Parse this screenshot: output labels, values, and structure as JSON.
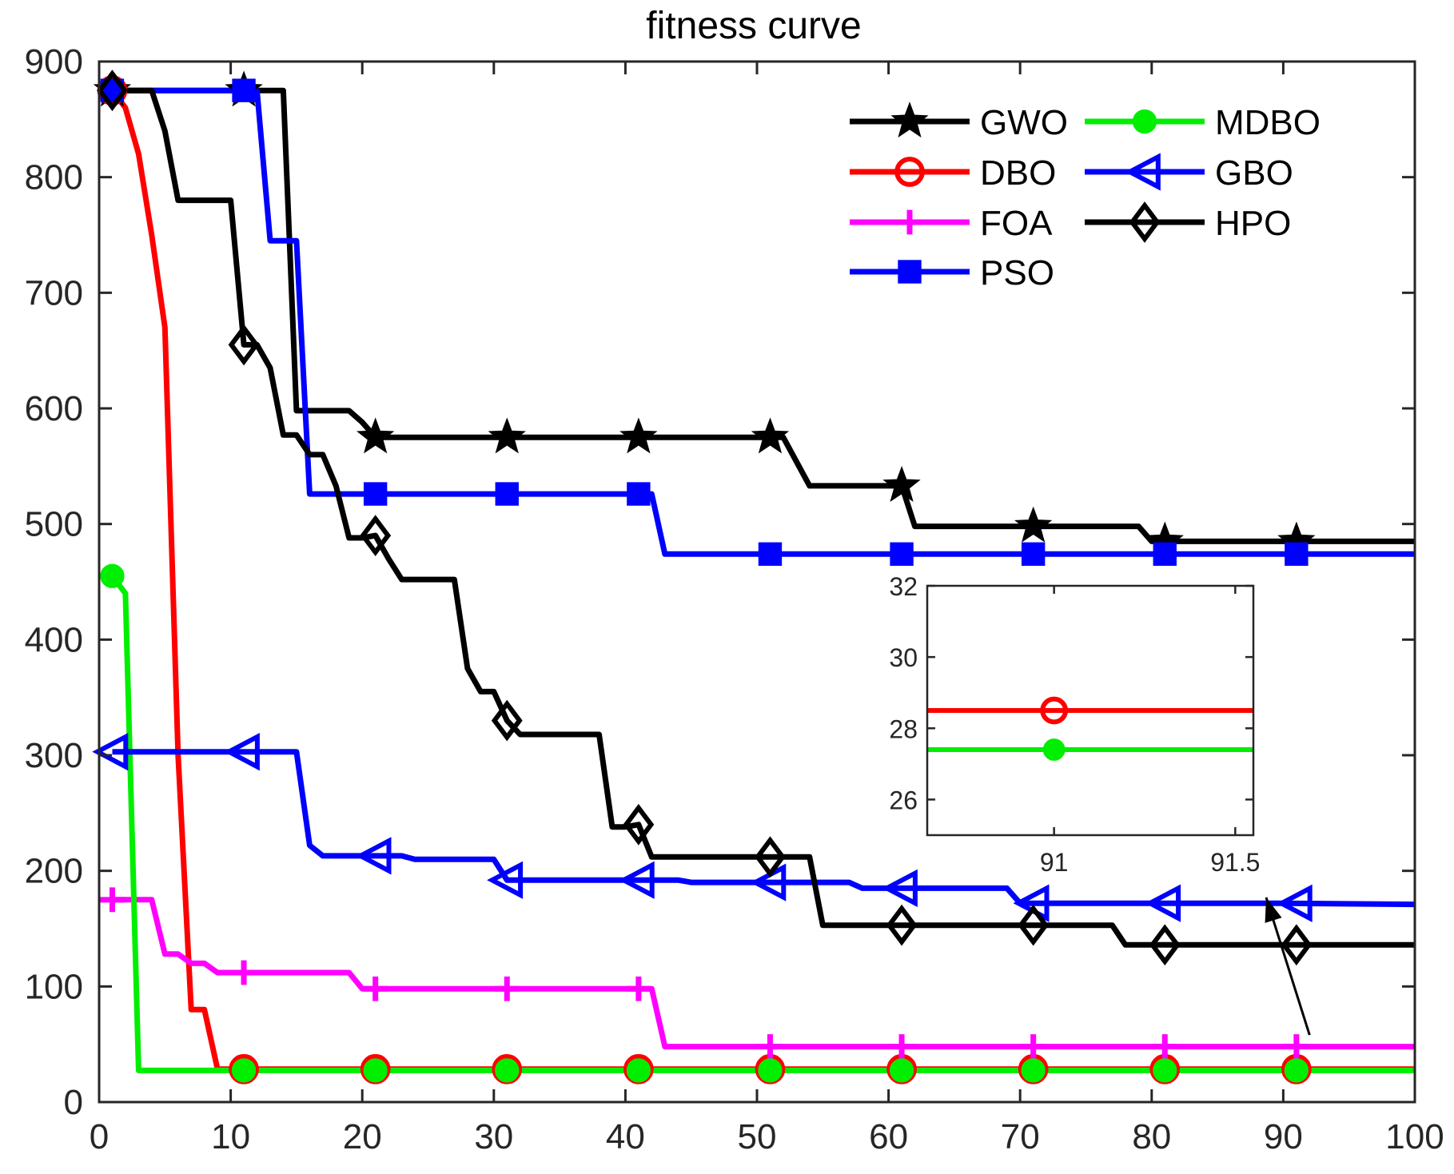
{
  "chart_data": {
    "type": "line",
    "title": "fitness curve",
    "xlabel": "",
    "ylabel": "",
    "xlim": [
      0,
      100
    ],
    "ylim": [
      0,
      900
    ],
    "xticks": [
      0,
      10,
      20,
      30,
      40,
      50,
      60,
      70,
      80,
      90,
      100
    ],
    "yticks": [
      0,
      100,
      200,
      300,
      400,
      500,
      600,
      700,
      800,
      900
    ],
    "grid": false,
    "legend_position": "top-right",
    "series": [
      {
        "name": "GWO",
        "color": "#000000",
        "marker": "star",
        "points": [
          [
            1,
            875
          ],
          [
            14,
            875
          ],
          [
            15,
            598
          ],
          [
            19,
            598
          ],
          [
            20,
            588
          ],
          [
            21,
            575
          ],
          [
            52,
            575
          ],
          [
            54,
            533
          ],
          [
            61,
            533
          ],
          [
            62,
            498
          ],
          [
            79,
            498
          ],
          [
            80,
            485
          ],
          [
            100,
            485
          ]
        ],
        "marker_x": [
          1,
          11,
          21,
          31,
          41,
          51,
          61,
          71,
          81,
          91
        ]
      },
      {
        "name": "DBO",
        "color": "#ff0000",
        "marker": "circle",
        "points": [
          [
            1,
            875
          ],
          [
            2,
            860
          ],
          [
            3,
            820
          ],
          [
            4,
            750
          ],
          [
            5,
            670
          ],
          [
            6,
            300
          ],
          [
            7,
            80
          ],
          [
            8,
            80
          ],
          [
            9,
            28.5
          ],
          [
            100,
            28.5
          ]
        ],
        "marker_x": [
          1,
          11,
          21,
          31,
          41,
          51,
          61,
          71,
          81,
          91
        ]
      },
      {
        "name": "FOA",
        "color": "#ff00ff",
        "marker": "plus",
        "points": [
          [
            1,
            175
          ],
          [
            4,
            175
          ],
          [
            5,
            128
          ],
          [
            6,
            128
          ],
          [
            7,
            120
          ],
          [
            8,
            120
          ],
          [
            9,
            112
          ],
          [
            19,
            112
          ],
          [
            20,
            98
          ],
          [
            42,
            98
          ],
          [
            43,
            48
          ],
          [
            100,
            48
          ]
        ],
        "marker_x": [
          1,
          11,
          21,
          31,
          41,
          51,
          61,
          71,
          81,
          91
        ]
      },
      {
        "name": "PSO",
        "color": "#0000ff",
        "marker": "square",
        "points": [
          [
            1,
            875
          ],
          [
            12,
            875
          ],
          [
            13,
            745
          ],
          [
            15,
            745
          ],
          [
            16,
            526
          ],
          [
            42,
            526
          ],
          [
            43,
            474
          ],
          [
            100,
            474
          ]
        ],
        "marker_x": [
          1,
          11,
          21,
          31,
          41,
          51,
          61,
          71,
          81,
          91
        ]
      },
      {
        "name": "MDBO",
        "color": "#00ee00",
        "marker": "filled-circle",
        "points": [
          [
            1,
            455
          ],
          [
            2,
            440
          ],
          [
            3,
            27.4
          ],
          [
            100,
            27.4
          ]
        ],
        "marker_x": [
          1,
          11,
          21,
          31,
          41,
          51,
          61,
          71,
          81,
          91
        ]
      },
      {
        "name": "GBO",
        "color": "#0000ff",
        "marker": "triangle-left",
        "points": [
          [
            1,
            303
          ],
          [
            15,
            303
          ],
          [
            16,
            222
          ],
          [
            17,
            213
          ],
          [
            23,
            213
          ],
          [
            24,
            210
          ],
          [
            30,
            210
          ],
          [
            31,
            192
          ],
          [
            44,
            192
          ],
          [
            45,
            190
          ],
          [
            57,
            190
          ],
          [
            58,
            185
          ],
          [
            69,
            185
          ],
          [
            70,
            172
          ],
          [
            90,
            172
          ],
          [
            100,
            171
          ]
        ],
        "marker_x": [
          1,
          11,
          21,
          31,
          41,
          51,
          61,
          71,
          81,
          91
        ]
      },
      {
        "name": "HPO",
        "color": "#000000",
        "marker": "diamond",
        "points": [
          [
            1,
            875
          ],
          [
            4,
            875
          ],
          [
            5,
            840
          ],
          [
            6,
            780
          ],
          [
            10,
            780
          ],
          [
            11,
            655
          ],
          [
            12,
            655
          ],
          [
            13,
            635
          ],
          [
            14,
            577
          ],
          [
            15,
            577
          ],
          [
            16,
            560
          ],
          [
            17,
            560
          ],
          [
            18,
            533
          ],
          [
            19,
            488
          ],
          [
            20,
            488
          ],
          [
            21,
            490
          ],
          [
            22,
            470
          ],
          [
            23,
            452
          ],
          [
            27,
            452
          ],
          [
            28,
            375
          ],
          [
            29,
            355
          ],
          [
            30,
            355
          ],
          [
            31,
            330
          ],
          [
            32,
            318
          ],
          [
            38,
            318
          ],
          [
            39,
            238
          ],
          [
            40,
            238
          ],
          [
            41,
            240
          ],
          [
            42,
            212
          ],
          [
            54,
            212
          ],
          [
            55,
            153
          ],
          [
            77,
            153
          ],
          [
            78,
            136
          ],
          [
            100,
            136
          ]
        ],
        "marker_x": [
          1,
          11,
          21,
          31,
          41,
          51,
          61,
          71,
          81,
          91
        ]
      }
    ],
    "inset": {
      "xlim": [
        90.65,
        91.55
      ],
      "ylim": [
        25,
        32
      ],
      "xticks": [
        91,
        91.5
      ],
      "yticks": [
        26,
        28,
        30,
        32
      ],
      "series": [
        {
          "name": "DBO",
          "color": "#ff0000",
          "y": 28.5,
          "marker": "circle",
          "marker_x": 91
        },
        {
          "name": "MDBO",
          "color": "#00ee00",
          "y": 27.4,
          "marker": "filled-circle",
          "marker_x": 91
        }
      ],
      "arrow_from": [
        92,
        58
      ],
      "arrow_to": [
        88.7,
        177
      ]
    }
  }
}
